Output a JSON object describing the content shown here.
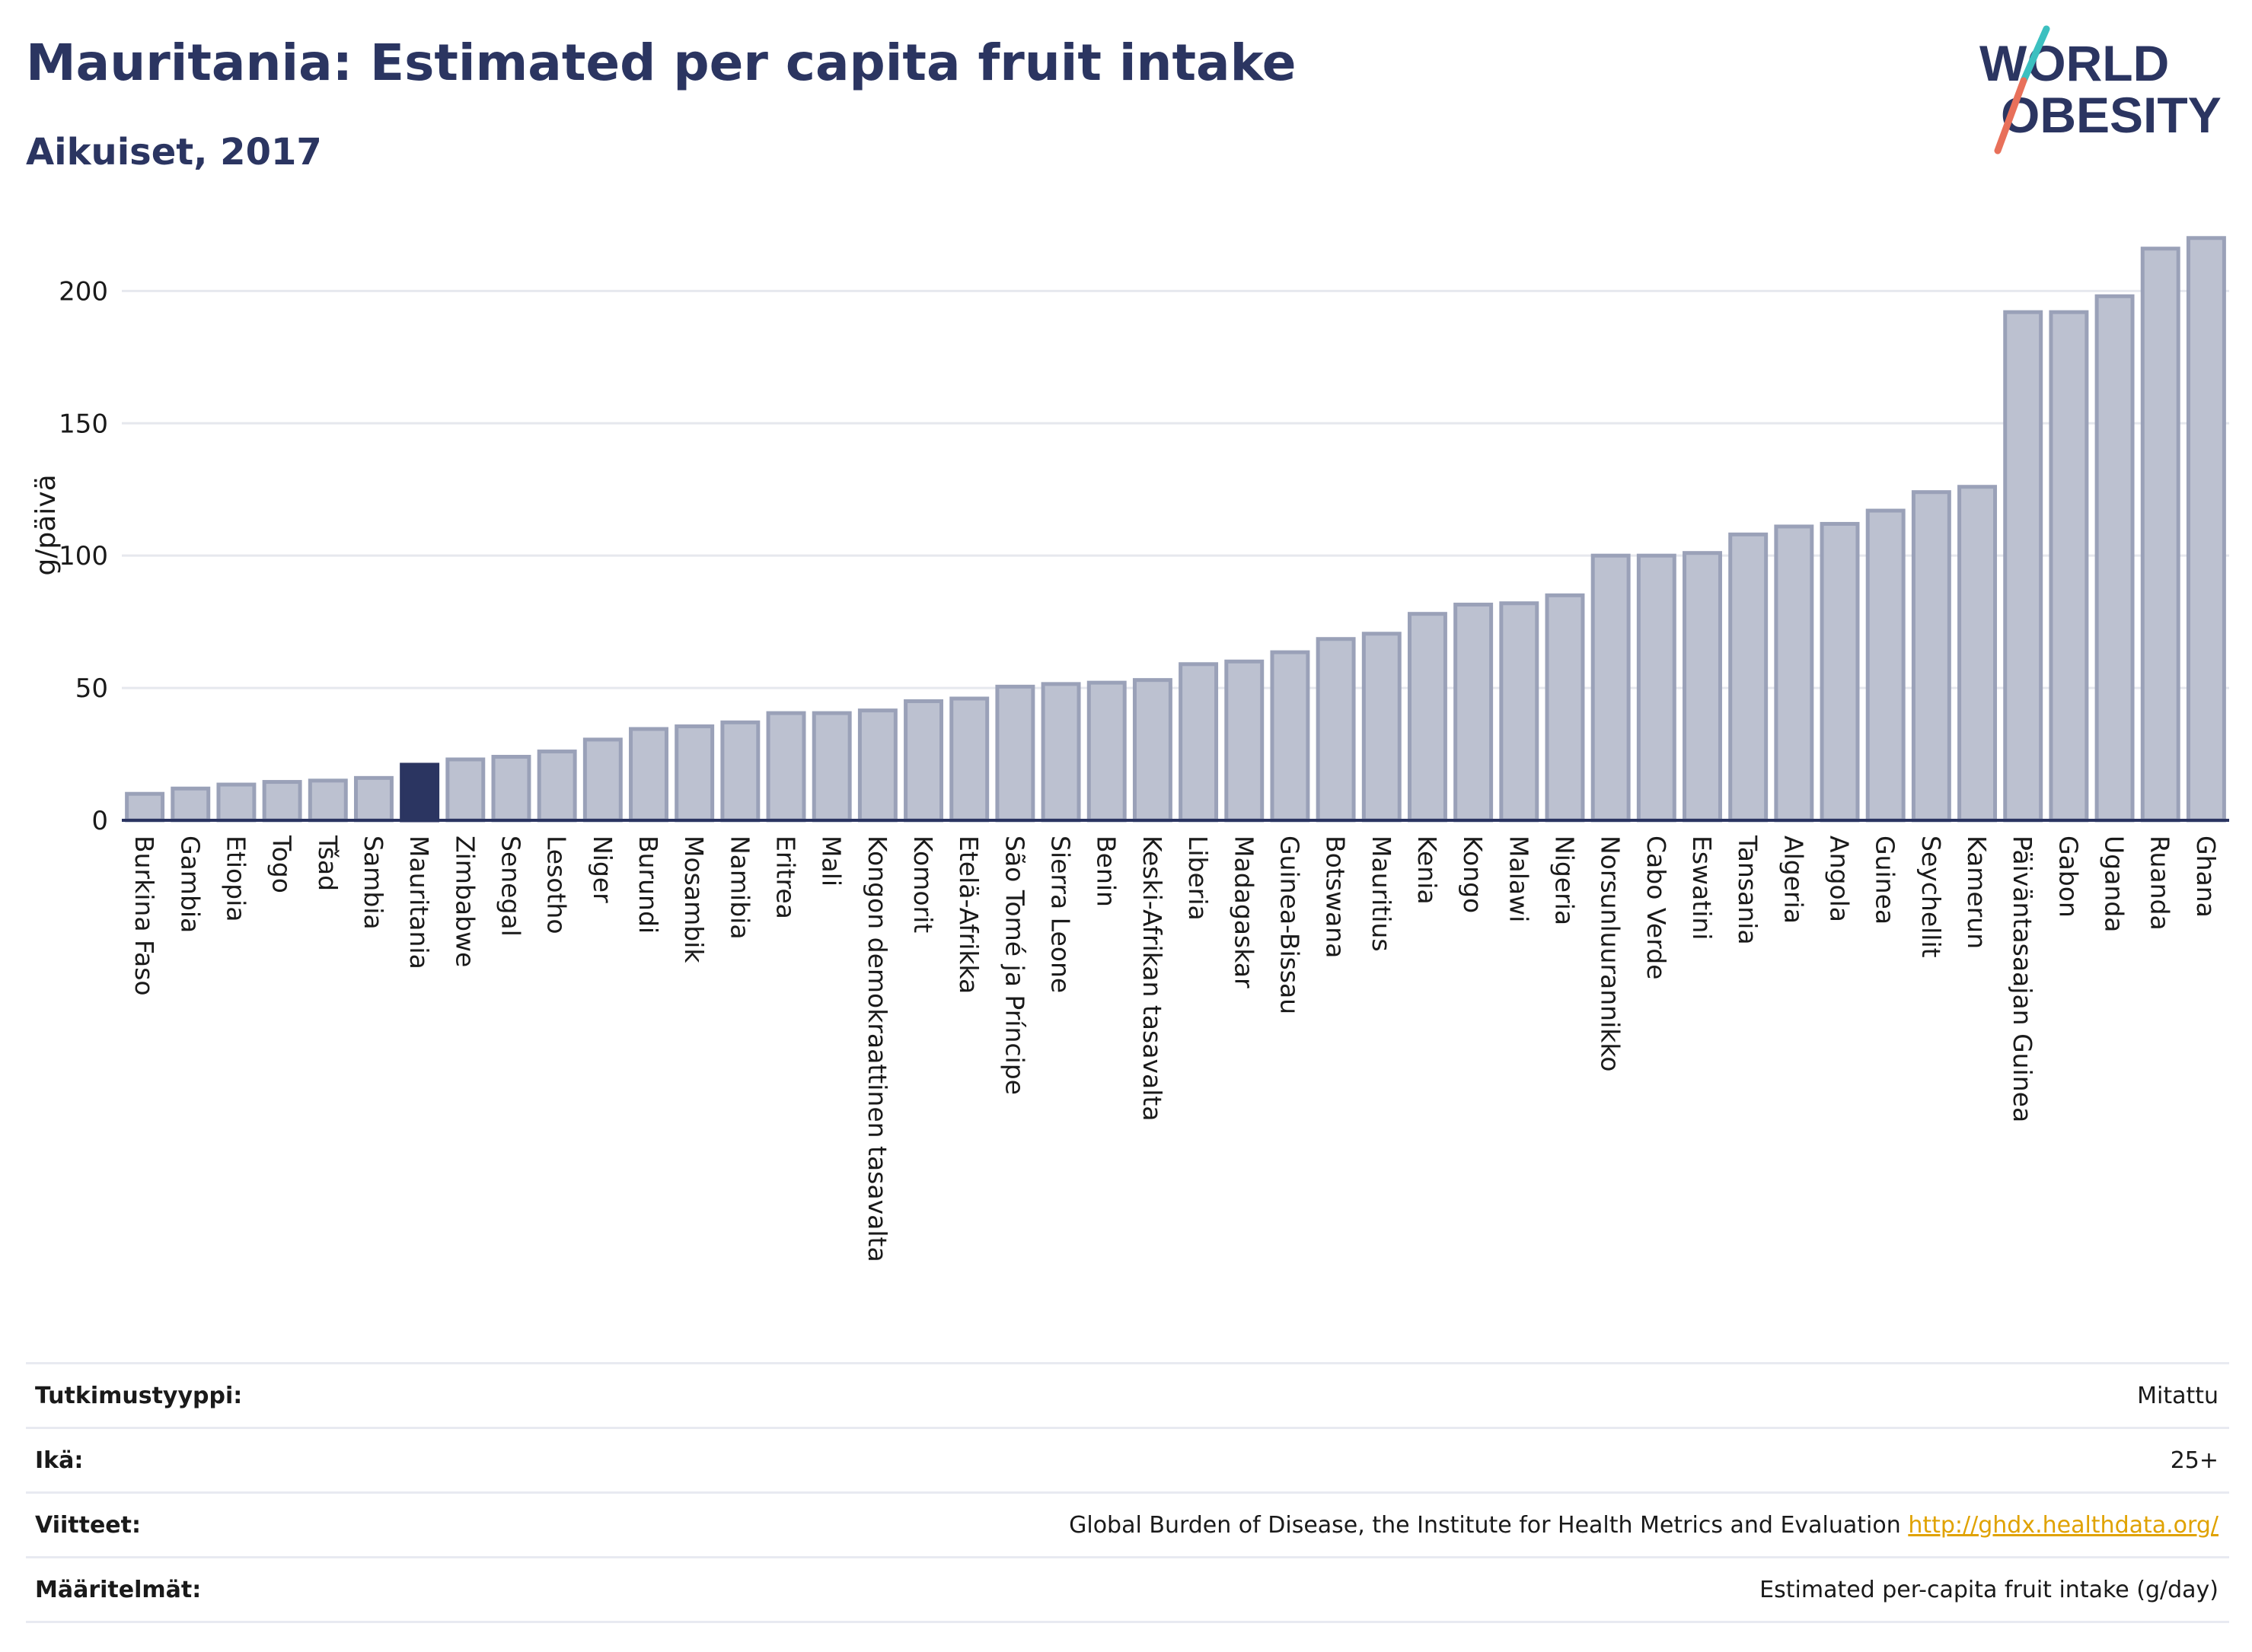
{
  "header": {
    "title": "Mauritania: Estimated per capita fruit intake",
    "subtitle": "Aikuiset, 2017"
  },
  "logo": {
    "line1": "WORLD",
    "line2": "OBESITY"
  },
  "colors": {
    "highlight": "#2b3561",
    "bar_fill": "#bcc1d0",
    "bar_stroke": "#9aa1b8",
    "text": "#2b3561",
    "link": "#e0a200"
  },
  "chart_data": {
    "type": "bar",
    "ylabel": "g/päivä",
    "ylim": [
      0,
      230
    ],
    "yticks": [
      0,
      50,
      100,
      150,
      200
    ],
    "grid": true,
    "highlight_category": "Mauritania",
    "categories": [
      "Burkina Faso",
      "Gambia",
      "Etiopia",
      "Togo",
      "Tšad",
      "Sambia",
      "Mauritania",
      "Zimbabwe",
      "Senegal",
      "Lesotho",
      "Niger",
      "Burundi",
      "Mosambik",
      "Namibia",
      "Eritrea",
      "Mali",
      "Kongon demokraattinen tasavalta",
      "Komorit",
      "Etelä-Afrikka",
      "São Tomé ja Príncipe",
      "Sierra Leone",
      "Benin",
      "Keski-Afrikan tasavalta",
      "Liberia",
      "Madagaskar",
      "Guinea-Bissau",
      "Botswana",
      "Mauritius",
      "Kenia",
      "Kongo",
      "Malawi",
      "Nigeria",
      "Norsunluurannikko",
      "Cabo Verde",
      "Eswatini",
      "Tansania",
      "Algeria",
      "Angola",
      "Guinea",
      "Seychellit",
      "Kamerun",
      "Päiväntasaajan Guinea",
      "Gabon",
      "Uganda",
      "Ruanda",
      "Ghana"
    ],
    "values": [
      10,
      12,
      13.5,
      14.5,
      15,
      16,
      21,
      23,
      24,
      26,
      30.5,
      34.5,
      35.5,
      37,
      40.5,
      40.5,
      41.5,
      45,
      46,
      50.5,
      51.5,
      52,
      53,
      59,
      60,
      63.5,
      68.5,
      70.5,
      78,
      81.5,
      82,
      85,
      100,
      100,
      101,
      108,
      111,
      112,
      117,
      124,
      126,
      192,
      192,
      198,
      216,
      220
    ]
  },
  "info": {
    "rows": [
      {
        "label": "Tutkimustyyppi:",
        "value": "Mitattu",
        "link": ""
      },
      {
        "label": "Ikä:",
        "value": "25+",
        "link": ""
      },
      {
        "label": "Viitteet:",
        "value": "Global Burden of Disease, the Institute for Health Metrics and Evaluation",
        "link": "http://ghdx.healthdata.org/"
      },
      {
        "label": "Määritelmät:",
        "value": "Estimated per-capita fruit intake (g/day)",
        "link": ""
      }
    ]
  }
}
